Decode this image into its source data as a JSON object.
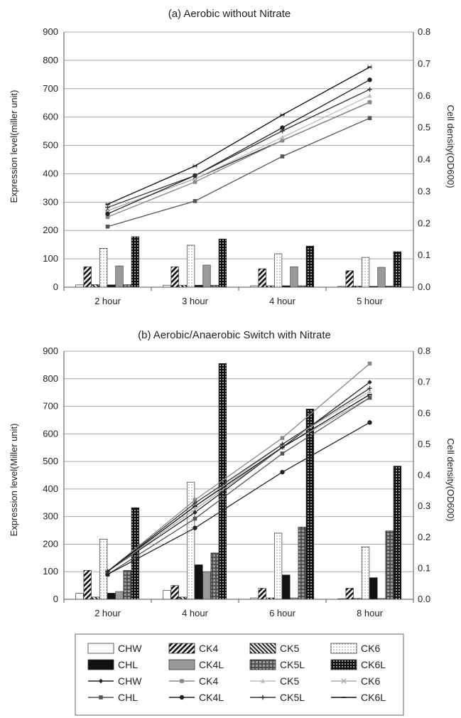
{
  "chart_data": [
    {
      "type": "bar",
      "title": "(a) Aerobic without Nitrate",
      "ylabel": "Expression level(miller unit)",
      "y2label": "Cell density(OD600)",
      "ylim": [
        0,
        900
      ],
      "y2lim": [
        0,
        0.8
      ],
      "yticks": [
        "0",
        "100",
        "200",
        "300",
        "400",
        "500",
        "600",
        "700",
        "800",
        "900"
      ],
      "y2ticks": [
        "0.0",
        "0.1",
        "0.2",
        "0.3",
        "0.4",
        "0.5",
        "0.6",
        "0.7",
        "0.8"
      ],
      "categories": [
        "2 hour",
        "3 hour",
        "4 hour",
        "5 hour"
      ],
      "bar_series": [
        {
          "name": "CHW",
          "values": [
            8,
            7,
            5,
            3
          ]
        },
        {
          "name": "CK4",
          "values": [
            72,
            72,
            65,
            58
          ]
        },
        {
          "name": "CK5",
          "values": [
            9,
            7,
            5,
            4
          ]
        },
        {
          "name": "CK6",
          "values": [
            137,
            148,
            118,
            105
          ]
        },
        {
          "name": "CHL",
          "values": [
            8,
            7,
            5,
            3
          ]
        },
        {
          "name": "CK4L",
          "values": [
            75,
            78,
            72,
            70
          ]
        },
        {
          "name": "CK5L",
          "values": [
            9,
            7,
            5,
            4
          ]
        },
        {
          "name": "CK6L",
          "values": [
            178,
            170,
            145,
            125
          ]
        }
      ],
      "line_series": [
        {
          "name": "CHW",
          "values": [
            0.24,
            0.34,
            0.46,
            0.58
          ]
        },
        {
          "name": "CK4",
          "values": [
            0.22,
            0.33,
            0.46,
            0.58
          ]
        },
        {
          "name": "CK5",
          "values": [
            0.24,
            0.34,
            0.47,
            0.6
          ]
        },
        {
          "name": "CK6",
          "values": [
            0.26,
            0.38,
            0.54,
            0.69
          ]
        },
        {
          "name": "CHL",
          "values": [
            0.19,
            0.27,
            0.41,
            0.53
          ]
        },
        {
          "name": "CK4L",
          "values": [
            0.23,
            0.35,
            0.5,
            0.65
          ]
        },
        {
          "name": "CK5L",
          "values": [
            0.25,
            0.35,
            0.49,
            0.62
          ]
        },
        {
          "name": "CK6L",
          "values": [
            0.26,
            0.38,
            0.54,
            0.69
          ]
        }
      ]
    },
    {
      "type": "bar",
      "title": "(b) Aerobic/Anaerobic Switch with Nitrate",
      "ylabel": "Expression level(Miller unit)",
      "y2label": "Cell density(OD600)",
      "ylim": [
        0,
        900
      ],
      "y2lim": [
        0,
        0.8
      ],
      "yticks": [
        "0",
        "100",
        "200",
        "300",
        "400",
        "500",
        "600",
        "700",
        "800",
        "900"
      ],
      "y2ticks": [
        "0.0",
        "0.1",
        "0.2",
        "0.3",
        "0.4",
        "0.5",
        "0.6",
        "0.7",
        "0.8"
      ],
      "categories": [
        "2 hour",
        "4 hour",
        "6 hour",
        "8 hour"
      ],
      "bar_series": [
        {
          "name": "CHW",
          "values": [
            22,
            32,
            5,
            2
          ]
        },
        {
          "name": "CK4",
          "values": [
            105,
            50,
            40,
            40
          ]
        },
        {
          "name": "CK5",
          "values": [
            8,
            8,
            5,
            3
          ]
        },
        {
          "name": "CK6",
          "values": [
            218,
            425,
            240,
            190
          ]
        },
        {
          "name": "CHL",
          "values": [
            22,
            125,
            88,
            78
          ]
        },
        {
          "name": "CK4L",
          "values": [
            28,
            100,
            5,
            3
          ]
        },
        {
          "name": "CK5L",
          "values": [
            105,
            168,
            262,
            248
          ]
        },
        {
          "name": "CK6L",
          "values": [
            332,
            855,
            690,
            483
          ]
        }
      ],
      "line_series": [
        {
          "name": "CHW",
          "values": [
            0.09,
            0.28,
            0.49,
            0.7
          ]
        },
        {
          "name": "CK4",
          "values": [
            0.09,
            0.32,
            0.52,
            0.76
          ]
        },
        {
          "name": "CK5",
          "values": [
            0.09,
            0.3,
            0.5,
            0.67
          ]
        },
        {
          "name": "CK6",
          "values": [
            0.09,
            0.29,
            0.49,
            0.65
          ]
        },
        {
          "name": "CHL",
          "values": [
            0.08,
            0.26,
            0.47,
            0.65
          ]
        },
        {
          "name": "CK4L",
          "values": [
            0.08,
            0.23,
            0.41,
            0.57
          ]
        },
        {
          "name": "CK5L",
          "values": [
            0.09,
            0.31,
            0.5,
            0.68
          ]
        },
        {
          "name": "CK6L",
          "values": [
            0.09,
            0.3,
            0.49,
            0.66
          ]
        }
      ]
    }
  ],
  "legend": {
    "bar_entries": [
      "CHW",
      "CK4",
      "CK5",
      "CK6",
      "CHL",
      "CK4L",
      "CK5L",
      "CK6L"
    ],
    "line_entries": [
      "CHW",
      "CK4",
      "CK5",
      "CK6",
      "CHL",
      "CK4L",
      "CK5L",
      "CK6L"
    ]
  }
}
